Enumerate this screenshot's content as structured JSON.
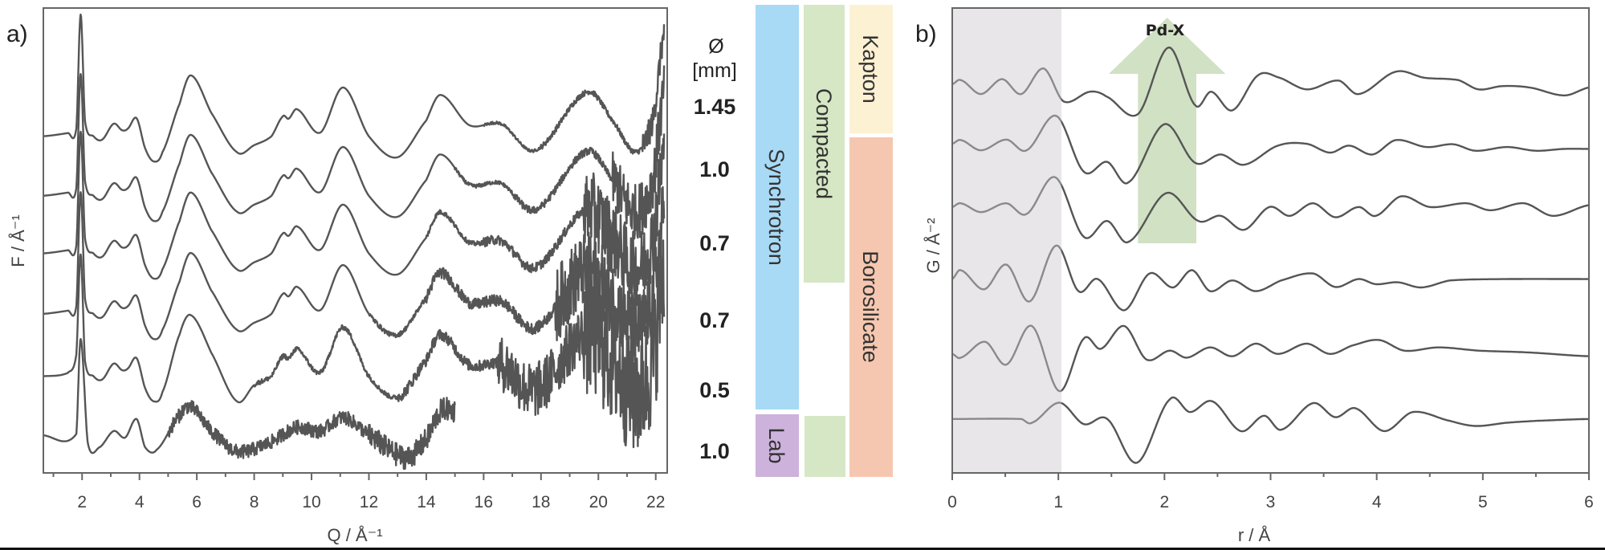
{
  "colors": {
    "trace": "#555555",
    "trace_shaded": "#8a8a8a",
    "shaded_region": "#e8e6e9",
    "synchrotron": "#a8daf6",
    "lab": "#cdb2dc",
    "compacted": "#d5e7c4",
    "kapton": "#fdf1d3",
    "borosilicate": "#f6c7b0",
    "arrow": "#c9dcba"
  },
  "diameter_column": {
    "symbol": "Ø",
    "unit": "[mm]",
    "values": [
      "1.45",
      "1.0",
      "0.7",
      "0.7",
      "0.5",
      "1.0"
    ]
  },
  "category_bars": {
    "synchrotron": "Synchrotron",
    "lab": "Lab",
    "compacted": "Compacted",
    "kapton": "Kapton",
    "borosilicate": "Borosilicate"
  },
  "chart_data": [
    {
      "type": "line",
      "panel_label": "a)",
      "xlabel": "Q / Å⁻¹",
      "ylabel": "F / Å⁻¹",
      "xlim": [
        0.65,
        22.4
      ],
      "ylim": [
        0,
        100
      ],
      "xticks": [
        "2",
        "4",
        "6",
        "8",
        "10",
        "12",
        "14",
        "16",
        "18",
        "20",
        "22"
      ],
      "minor_tick_step": 1,
      "grid": false,
      "series": [
        {
          "name": "1.45",
          "x": [
            0.6,
            1.5,
            1.8,
            1.95,
            2.1,
            2.4,
            2.7,
            3.1,
            3.4,
            3.6,
            3.9,
            4.2,
            4.5,
            4.8,
            5.4,
            5.8,
            6.5,
            7.4,
            8.0,
            8.6,
            9.0,
            9.2,
            9.5,
            10.3,
            11.1,
            12.0,
            13.0,
            14.0,
            14.5,
            15.5,
            16.6,
            17.8,
            19.6,
            20.5,
            21.3,
            21.9,
            22.3
          ],
          "y": [
            72.4,
            73.1,
            74.1,
            98.6,
            75.8,
            72.4,
            71.7,
            75.1,
            73.7,
            74.1,
            76.3,
            69.8,
            67.0,
            69.0,
            79.4,
            85.5,
            77.5,
            69.0,
            70.5,
            72.4,
            76.7,
            76.2,
            78.2,
            73.2,
            82.9,
            72.4,
            67.9,
            75.8,
            81.3,
            74.8,
            75.1,
            69.4,
            81.9,
            75.8,
            69.0,
            75.8,
            94.8
          ],
          "noise": [
            [
              16,
              0.3
            ],
            [
              18,
              0.6
            ],
            [
              21.5,
              3
            ]
          ]
        },
        {
          "name": "1.0",
          "x": [
            0.6,
            1.5,
            1.8,
            1.95,
            2.1,
            2.4,
            2.7,
            3.1,
            3.4,
            3.6,
            3.9,
            4.2,
            4.5,
            4.8,
            5.4,
            5.8,
            6.5,
            7.4,
            8.0,
            8.6,
            9.0,
            9.2,
            9.5,
            10.3,
            11.1,
            12.0,
            13.0,
            14.0,
            14.5,
            15.5,
            16.6,
            17.8,
            19.6,
            20.5,
            21.3,
            21.9,
            22.3
          ],
          "y": [
            59.6,
            60.3,
            61.3,
            85.8,
            63.0,
            59.6,
            58.9,
            62.3,
            60.9,
            61.3,
            63.5,
            57.0,
            54.2,
            56.2,
            66.6,
            72.7,
            64.7,
            56.2,
            57.7,
            59.6,
            63.9,
            63.4,
            65.4,
            60.4,
            70.1,
            59.6,
            55.1,
            63.0,
            68.5,
            62.0,
            62.3,
            56.6,
            69.1,
            63.0,
            56.2,
            63.0,
            82.0
          ],
          "noise": [
            [
              15,
              0.4
            ],
            [
              17,
              0.8
            ],
            [
              20.5,
              6
            ]
          ]
        },
        {
          "name": "0.7",
          "x": [
            0.6,
            1.5,
            1.8,
            1.95,
            2.1,
            2.4,
            2.7,
            3.1,
            3.4,
            3.6,
            3.9,
            4.2,
            4.5,
            4.8,
            5.4,
            5.8,
            6.5,
            7.4,
            8.0,
            8.6,
            9.0,
            9.2,
            9.5,
            10.3,
            11.1,
            12.0,
            13.0,
            14.0,
            14.5,
            15.5,
            16.6,
            17.8,
            19.6,
            20.5,
            21.3,
            21.9,
            22.3
          ],
          "y": [
            47.2,
            47.9,
            48.9,
            73.4,
            50.6,
            47.2,
            46.5,
            49.9,
            48.5,
            48.9,
            51.1,
            44.6,
            41.8,
            43.8,
            54.2,
            60.3,
            52.3,
            43.8,
            45.3,
            47.2,
            51.5,
            51.0,
            53.0,
            48.0,
            57.7,
            47.2,
            42.7,
            50.6,
            56.1,
            49.6,
            49.9,
            44.2,
            56.7,
            50.6,
            43.8,
            50.6,
            69.6
          ],
          "noise": [
            [
              14,
              0.5
            ],
            [
              16,
              1
            ],
            [
              19.5,
              8
            ]
          ]
        },
        {
          "name": "0.7",
          "x": [
            0.6,
            1.5,
            1.8,
            1.95,
            2.1,
            2.4,
            2.7,
            3.1,
            3.4,
            3.6,
            3.9,
            4.2,
            4.5,
            4.8,
            5.4,
            5.8,
            6.5,
            7.4,
            8.0,
            8.6,
            9.0,
            9.2,
            9.5,
            10.3,
            11.1,
            12.0,
            13.0,
            14.0,
            14.5,
            15.5,
            16.6,
            17.8,
            19.6,
            20.5,
            21.3,
            21.9,
            22.3
          ],
          "y": [
            34.2,
            34.9,
            35.9,
            60.4,
            37.6,
            34.2,
            33.5,
            36.9,
            35.5,
            35.9,
            38.1,
            31.6,
            28.8,
            30.8,
            41.2,
            47.3,
            39.3,
            30.8,
            32.3,
            34.2,
            38.5,
            38.0,
            40.0,
            35.0,
            44.7,
            34.2,
            29.7,
            37.6,
            43.1,
            36.6,
            36.9,
            31.2,
            43.7,
            37.6,
            30.8,
            37.6,
            56.6
          ],
          "noise": [
            [
              12,
              0.5
            ],
            [
              14,
              1.2
            ],
            [
              18.5,
              8
            ]
          ]
        },
        {
          "name": "0.5",
          "x": [
            0.6,
            1.5,
            1.8,
            1.95,
            2.1,
            2.4,
            2.7,
            3.1,
            3.4,
            3.6,
            3.9,
            4.2,
            4.5,
            4.8,
            5.4,
            5.8,
            6.5,
            7.4,
            8.0,
            8.6,
            9.0,
            9.2,
            9.5,
            10.3,
            11.1,
            12.0,
            13.0,
            14.0,
            14.5,
            15.5,
            16.6,
            17.8,
            19.6,
            20.5,
            21.3,
            21.9,
            22.3
          ],
          "y": [
            20.8,
            21.5,
            25.5,
            47.0,
            24.2,
            20.8,
            20.1,
            23.5,
            22.1,
            22.5,
            24.7,
            18.2,
            15.4,
            17.4,
            29.8,
            33.9,
            25.9,
            15.4,
            18.9,
            20.8,
            25.1,
            24.6,
            26.6,
            21.6,
            31.3,
            20.8,
            16.3,
            24.2,
            29.7,
            23.2,
            23.5,
            17.8,
            30.3,
            24.2,
            17.4,
            24.2,
            43.2
          ],
          "noise": [
            [
              8,
              0.5
            ],
            [
              13,
              1.2
            ],
            [
              16.5,
              6
            ],
            [
              19.5,
              14
            ]
          ]
        },
        {
          "name": "1.0",
          "x": [
            0.6,
            1.8,
            1.95,
            2.2,
            2.6,
            3.1,
            3.5,
            3.9,
            4.2,
            4.6,
            5.4,
            5.8,
            6.5,
            7.4,
            8.5,
            9.5,
            10.3,
            11.1,
            12.0,
            13.3,
            14.0,
            14.5,
            15.0
          ],
          "y": [
            8.1,
            8.4,
            28.8,
            6.4,
            5.5,
            9.0,
            7.6,
            11.6,
            5.5,
            5.0,
            12.4,
            14.1,
            9.0,
            4.6,
            6.4,
            9.8,
            9.0,
            11.9,
            8.1,
            3.3,
            7.2,
            13.3,
            13.3
          ],
          "noise": [
            [
              5,
              1.5
            ],
            [
              12,
              2.5
            ]
          ]
        }
      ]
    },
    {
      "type": "line",
      "panel_label": "b)",
      "xlabel": "r / Å",
      "ylabel": "G / Å⁻²",
      "xlim": [
        0,
        6
      ],
      "ylim": [
        0,
        100
      ],
      "xticks": [
        "0",
        "1",
        "2",
        "3",
        "4",
        "5",
        "6"
      ],
      "minor_tick_step": 0.5,
      "grid": false,
      "shaded_region": [
        0,
        1.03
      ],
      "annotation": {
        "text": "Pd-X",
        "arrow_x_range": [
          1.75,
          2.3
        ],
        "direction": "up"
      },
      "series": [
        {
          "x": [
            0,
            0.08,
            0.27,
            0.47,
            0.65,
            0.86,
            1.05,
            1.3,
            1.45,
            1.75,
            2.04,
            2.29,
            2.44,
            2.64,
            2.88,
            3.07,
            3.34,
            3.64,
            3.83,
            4.18,
            4.45,
            4.77,
            4.96,
            5.18,
            5.44,
            5.77,
            6.0
          ],
          "y": [
            83.6,
            84.5,
            81.5,
            84.7,
            81.5,
            87.0,
            79.9,
            82.0,
            81.0,
            77.2,
            91.5,
            79.1,
            82.0,
            78.0,
            85.5,
            85.1,
            82.5,
            84.4,
            81.5,
            86.3,
            85.0,
            84.5,
            82.5,
            83.2,
            82.9,
            81.2,
            82.9
          ]
        },
        {
          "x": [
            0,
            0.08,
            0.27,
            0.51,
            0.7,
            0.98,
            1.24,
            1.46,
            1.66,
            2.0,
            2.29,
            2.53,
            2.75,
            3.07,
            3.34,
            3.56,
            3.74,
            3.96,
            4.18,
            4.47,
            4.72,
            4.93,
            5.23,
            5.5,
            5.77,
            6.0
          ],
          "y": [
            70.8,
            71.6,
            69.4,
            71.7,
            69.4,
            76.8,
            64.8,
            66.9,
            62.5,
            75.0,
            66.7,
            68.5,
            66.3,
            70.4,
            70.8,
            68.9,
            70.4,
            68.5,
            71.6,
            70.1,
            70.7,
            69.3,
            70.1,
            69.3,
            69.7,
            69.7
          ]
        },
        {
          "x": [
            0,
            0.08,
            0.27,
            0.51,
            0.7,
            0.97,
            1.24,
            1.46,
            1.66,
            2.02,
            2.32,
            2.53,
            2.75,
            2.99,
            3.18,
            3.4,
            3.61,
            3.83,
            3.99,
            4.23,
            4.5,
            4.85,
            5.07,
            5.39,
            5.66,
            6.0
          ],
          "y": [
            57.2,
            58.0,
            56.1,
            58.0,
            55.7,
            63.6,
            50.8,
            54.2,
            49.7,
            60.2,
            54.2,
            55.3,
            52.3,
            57.2,
            55.3,
            58.0,
            55.0,
            57.2,
            55.3,
            59.5,
            57.2,
            58.0,
            56.5,
            58.0,
            55.3,
            57.6
          ]
        },
        {
          "x": [
            0,
            0.08,
            0.3,
            0.51,
            0.73,
            0.98,
            1.19,
            1.37,
            1.62,
            1.86,
            2.08,
            2.26,
            2.43,
            2.64,
            2.86,
            3.1,
            3.4,
            3.61,
            3.83,
            3.99,
            4.2,
            4.42,
            4.69,
            5.23,
            6.0
          ],
          "y": [
            41.7,
            43.6,
            39.5,
            44.8,
            36.9,
            48.9,
            39.1,
            41.7,
            35.0,
            42.9,
            39.9,
            43.6,
            39.1,
            41.4,
            39.1,
            41.4,
            42.9,
            40.0,
            41.7,
            40.6,
            41.0,
            39.9,
            41.4,
            41.7,
            41.7
          ]
        },
        {
          "x": [
            0,
            0.08,
            0.31,
            0.51,
            0.75,
            1.01,
            1.24,
            1.4,
            1.62,
            1.83,
            2.05,
            2.21,
            2.43,
            2.64,
            2.86,
            3.07,
            3.34,
            3.56,
            3.77,
            4.02,
            4.26,
            4.58,
            4.96,
            5.44,
            6.0
          ],
          "y": [
            25.6,
            24.8,
            28.2,
            23.3,
            31.6,
            17.6,
            28.9,
            26.7,
            31.6,
            24.4,
            26.3,
            24.8,
            27.0,
            25.1,
            27.8,
            25.6,
            27.8,
            25.6,
            27.4,
            28.6,
            26.3,
            27.0,
            26.3,
            25.9,
            25.1
          ]
        },
        {
          "x": [
            0,
            0.65,
            0.75,
            1.01,
            1.24,
            1.46,
            1.74,
            2.05,
            2.24,
            2.45,
            2.72,
            2.94,
            3.1,
            3.4,
            3.61,
            3.8,
            4.07,
            4.34,
            4.69,
            4.93,
            5.23,
            5.5,
            6.0
          ],
          "y": [
            11.6,
            11.6,
            10.8,
            15.1,
            10.5,
            11.6,
            2.2,
            15.8,
            13.1,
            15.4,
            9.0,
            12.3,
            9.3,
            15.0,
            12.0,
            13.9,
            9.0,
            13.1,
            11.2,
            10.1,
            10.8,
            11.2,
            11.6
          ]
        }
      ]
    }
  ]
}
